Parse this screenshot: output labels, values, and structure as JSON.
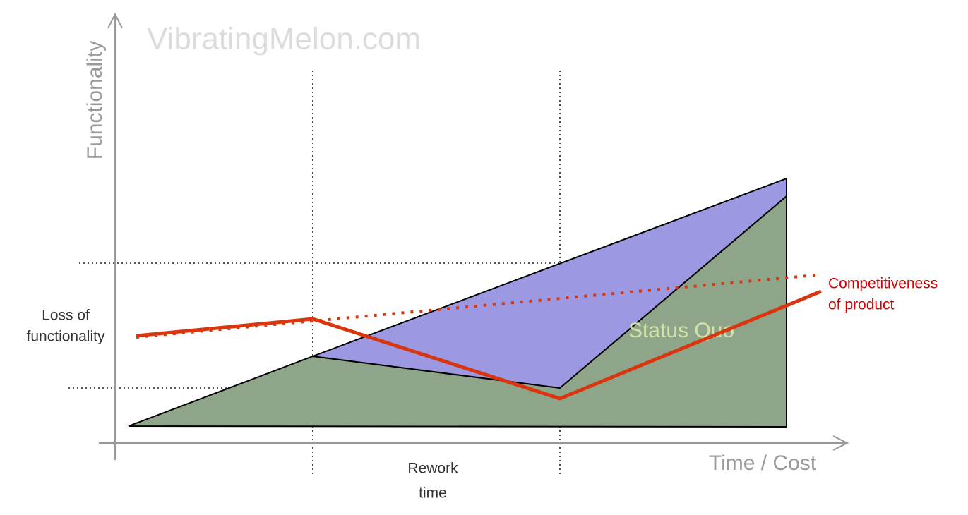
{
  "watermark": "VibratingMelon.com",
  "y_axis_label": "Functionality",
  "x_axis_label": "Time / Cost",
  "labels": {
    "loss_of_functionality": [
      "Loss of",
      "functionality"
    ],
    "rework_time": [
      "Rework",
      "time"
    ],
    "competitiveness": [
      "Competitiveness",
      "of product"
    ],
    "status_quo": "Status Quo"
  }
}
